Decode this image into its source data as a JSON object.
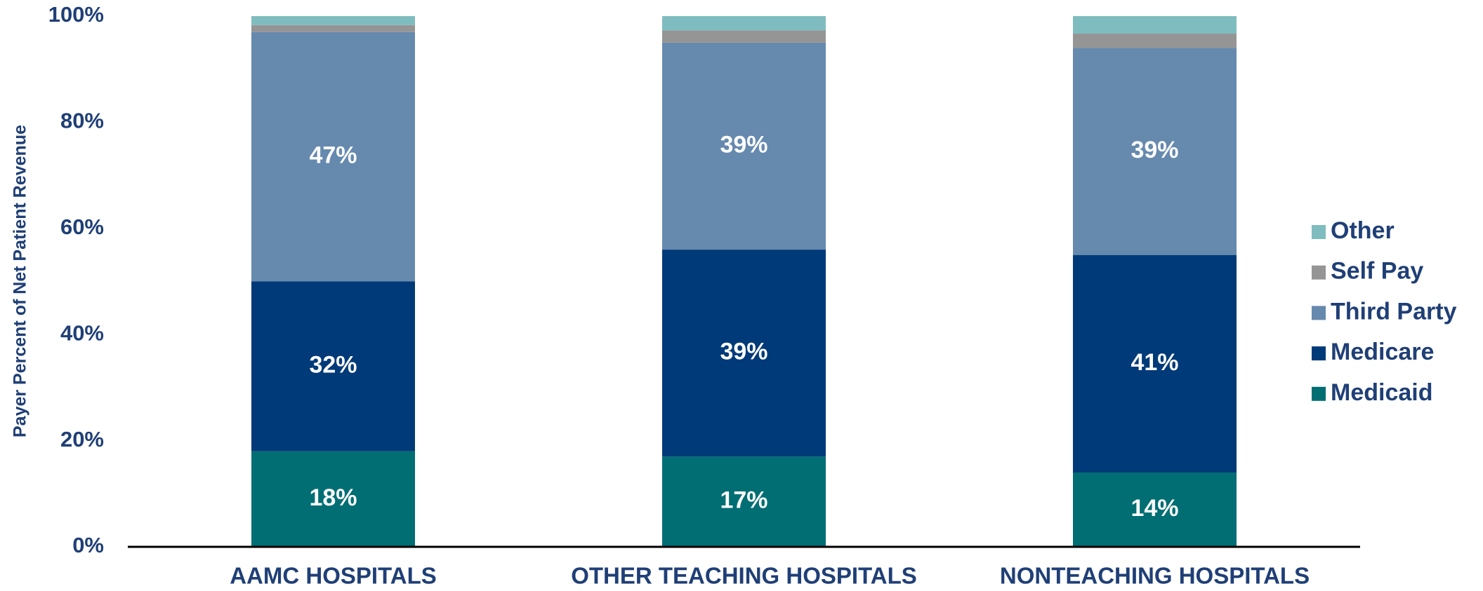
{
  "chart_data": {
    "type": "stacked_bar",
    "y_axis_label": "Payer Percent of Net Patient Revenue",
    "categories": [
      "AAMC HOSPITALS",
      "OTHER TEACHING HOSPITALS",
      "NONTEACHING HOSPITALS"
    ],
    "series": [
      {
        "name": "Medicaid",
        "color": "#006e73",
        "values": [
          18,
          17,
          14
        ],
        "value_labels": [
          "18%",
          "17%",
          "14%"
        ]
      },
      {
        "name": "Medicare",
        "color": "#003a78",
        "values": [
          32,
          39,
          41
        ],
        "value_labels": [
          "32%",
          "39%",
          "41%"
        ]
      },
      {
        "name": "Third Party",
        "color": "#6689ae",
        "values": [
          47,
          39,
          39
        ],
        "value_labels": [
          "47%",
          "39%",
          "39%"
        ]
      },
      {
        "name": "Self Pay",
        "color": "#959595",
        "values": [
          1.3,
          2.3,
          2.7
        ]
      },
      {
        "name": "Other",
        "color": "#7fbcbf",
        "values": [
          1.7,
          2.7,
          3.3
        ]
      }
    ],
    "ylim": [
      0,
      100
    ],
    "yticks": [
      {
        "value": 0,
        "label": "0%"
      },
      {
        "value": 20,
        "label": "20%"
      },
      {
        "value": 40,
        "label": "40%"
      },
      {
        "value": 60,
        "label": "60%"
      },
      {
        "value": 80,
        "label": "80%"
      },
      {
        "value": 100,
        "label": "100%"
      }
    ],
    "grid": false,
    "legend": "right"
  }
}
